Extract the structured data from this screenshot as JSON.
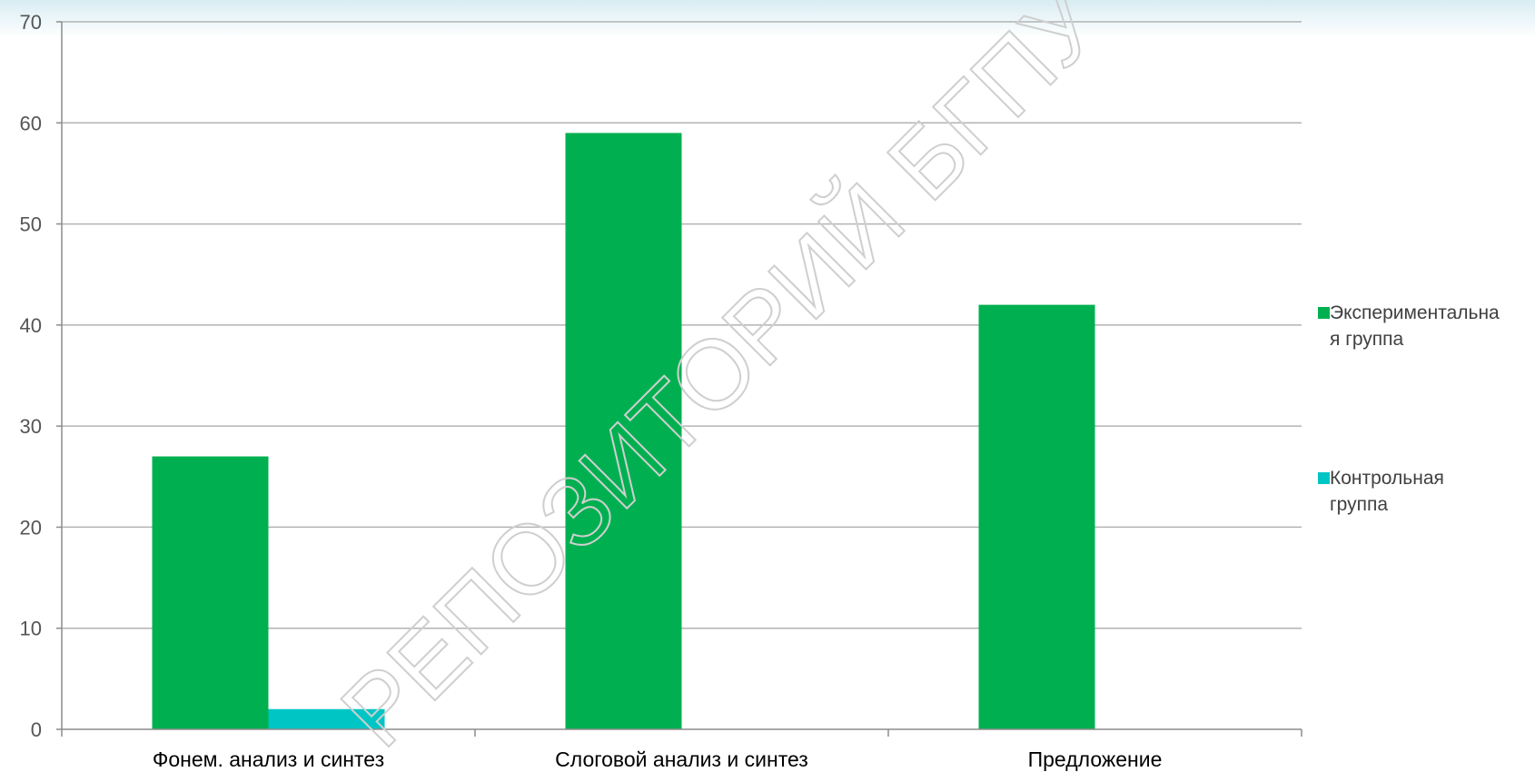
{
  "watermark": "РЕПОЗИТОРИЙ БГПУ",
  "chart_data": {
    "type": "bar",
    "title": "",
    "xlabel": "",
    "ylabel": "",
    "categories": [
      "Фонем. анализ и синтез",
      "Слоговой анализ и синтез",
      "Предложение"
    ],
    "series": [
      {
        "name": "Экспериментальная группа",
        "legend_lines": [
          "Экспериментальна",
          "я группа"
        ],
        "values": [
          27,
          59,
          42
        ],
        "color": "#00b050"
      },
      {
        "name": "Контрольная группа",
        "legend_lines": [
          "Контрольная",
          "группа"
        ],
        "values": [
          2,
          0,
          0
        ],
        "color": "#00c5c5"
      }
    ],
    "ylim": [
      0,
      70
    ],
    "yticks": [
      0,
      10,
      20,
      30,
      40,
      50,
      60,
      70
    ],
    "grid": true,
    "legend_position": "right",
    "colors": {
      "grid": "#b3b3b3",
      "axis": "#8c8c8c"
    }
  }
}
